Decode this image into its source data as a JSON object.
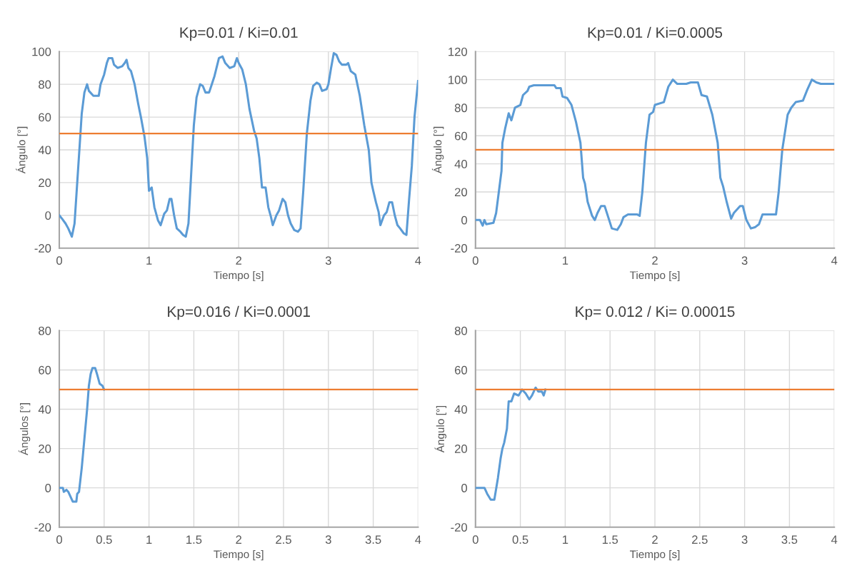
{
  "chart_data": [
    {
      "type": "line",
      "title": "Kp=0.01 / Ki=0.01",
      "xlabel": "Tiempo [s]",
      "ylabel": "Ángulo [°]",
      "xlim": [
        0,
        4
      ],
      "xticks": [
        0,
        1,
        2,
        3,
        4
      ],
      "ylim": [
        -20,
        100
      ],
      "yticks": [
        -20,
        0,
        20,
        40,
        60,
        80,
        100
      ],
      "grid": true,
      "ref_lines": [
        {
          "axis": "y",
          "value": 50,
          "color": "#ed7d31"
        }
      ],
      "series": [
        {
          "color": "#5b9bd5",
          "x": [
            0,
            0.03,
            0.07,
            0.1,
            0.14,
            0.17,
            0.2,
            0.23,
            0.25,
            0.28,
            0.31,
            0.33,
            0.38,
            0.44,
            0.46,
            0.5,
            0.53,
            0.55,
            0.59,
            0.61,
            0.65,
            0.7,
            0.73,
            0.75,
            0.77,
            0.8,
            0.84,
            0.88,
            0.91,
            0.95,
            0.98,
            1.0,
            1.03,
            1.06,
            1.1,
            1.13,
            1.17,
            1.2,
            1.23,
            1.25,
            1.28,
            1.31,
            1.35,
            1.38,
            1.41,
            1.44,
            1.47,
            1.5,
            1.53,
            1.57,
            1.6,
            1.63,
            1.67,
            1.7,
            1.73,
            1.78,
            1.82,
            1.85,
            1.9,
            1.95,
            1.98,
            2.0,
            2.04,
            2.08,
            2.12,
            2.17,
            2.2,
            2.23,
            2.26,
            2.3,
            2.33,
            2.36,
            2.38,
            2.42,
            2.45,
            2.49,
            2.52,
            2.55,
            2.58,
            2.62,
            2.66,
            2.69,
            2.72,
            2.76,
            2.8,
            2.83,
            2.87,
            2.9,
            2.93,
            2.98,
            3.0,
            3.03,
            3.06,
            3.09,
            3.12,
            3.15,
            3.2,
            3.22,
            3.25,
            3.3,
            3.35,
            3.4,
            3.45,
            3.48,
            3.5,
            3.53,
            3.56,
            3.58,
            3.62,
            3.65,
            3.68,
            3.71,
            3.74,
            3.77,
            3.8,
            3.84,
            3.87,
            3.9,
            3.93,
            3.96,
            4.0
          ],
          "values": [
            0,
            -2,
            -5,
            -8,
            -13,
            -5,
            20,
            45,
            62,
            75,
            80,
            76,
            73,
            73,
            80,
            86,
            93,
            96,
            96,
            92,
            90,
            91,
            93,
            95,
            90,
            88,
            80,
            68,
            60,
            48,
            35,
            15,
            17,
            5,
            -3,
            -6,
            1,
            3,
            10,
            10,
            0,
            -8,
            -10,
            -12,
            -13,
            -5,
            25,
            55,
            72,
            80,
            79,
            75,
            75,
            80,
            85,
            96,
            97,
            93,
            90,
            91,
            96,
            93,
            89,
            80,
            65,
            52,
            47,
            35,
            17,
            17,
            5,
            -1,
            -6,
            0,
            3,
            10,
            8,
            0,
            -5,
            -9,
            -10,
            -8,
            15,
            50,
            70,
            79,
            81,
            80,
            76,
            77,
            80,
            90,
            99,
            98,
            94,
            92,
            92,
            93,
            88,
            86,
            73,
            55,
            40,
            20,
            15,
            8,
            2,
            -6,
            0,
            2,
            8,
            8,
            0,
            -6,
            -8,
            -11,
            -12,
            10,
            30,
            60,
            82
          ]
        }
      ]
    },
    {
      "type": "line",
      "title": "Kp=0.01 / Ki=0.0005",
      "xlabel": "Tiempo [s]",
      "ylabel": "Ángulo [°]",
      "xlim": [
        0,
        4
      ],
      "xticks": [
        0,
        1,
        2,
        3,
        4
      ],
      "ylim": [
        -20,
        120
      ],
      "yticks": [
        -20,
        0,
        20,
        40,
        60,
        80,
        100,
        120
      ],
      "grid": true,
      "ref_lines": [
        {
          "axis": "y",
          "value": 50,
          "color": "#ed7d31"
        }
      ],
      "series": [
        {
          "color": "#5b9bd5",
          "x": [
            0,
            0.05,
            0.08,
            0.1,
            0.12,
            0.2,
            0.23,
            0.26,
            0.29,
            0.3,
            0.33,
            0.37,
            0.4,
            0.44,
            0.5,
            0.53,
            0.58,
            0.6,
            0.65,
            0.88,
            0.9,
            0.95,
            0.97,
            1.02,
            1.07,
            1.12,
            1.17,
            1.2,
            1.22,
            1.25,
            1.3,
            1.33,
            1.36,
            1.4,
            1.44,
            1.48,
            1.52,
            1.58,
            1.62,
            1.65,
            1.7,
            1.8,
            1.83,
            1.86,
            1.9,
            1.94,
            1.98,
            2.0,
            2.1,
            2.15,
            2.2,
            2.25,
            2.35,
            2.4,
            2.48,
            2.52,
            2.58,
            2.64,
            2.7,
            2.73,
            2.76,
            2.8,
            2.85,
            2.88,
            2.95,
            2.98,
            3.02,
            3.07,
            3.12,
            3.16,
            3.2,
            3.35,
            3.38,
            3.42,
            3.48,
            3.52,
            3.57,
            3.65,
            3.7,
            3.75,
            3.8,
            3.85,
            4.0
          ],
          "values": [
            0,
            0,
            -4,
            0,
            -3,
            -2,
            5,
            20,
            35,
            55,
            65,
            76,
            71,
            80,
            82,
            89,
            92,
            95,
            96,
            96,
            94,
            94,
            88,
            87,
            82,
            70,
            55,
            30,
            26,
            13,
            3,
            0,
            5,
            10,
            10,
            2,
            -6,
            -7,
            -3,
            2,
            4,
            4,
            3,
            20,
            55,
            75,
            77,
            82,
            84,
            95,
            100,
            97,
            97,
            98,
            98,
            89,
            88,
            75,
            55,
            30,
            24,
            13,
            1,
            5,
            10,
            10,
            0,
            -6,
            -5,
            -3,
            4,
            4,
            20,
            50,
            75,
            80,
            84,
            85,
            93,
            100,
            98,
            97,
            97
          ]
        }
      ]
    },
    {
      "type": "line",
      "title": "Kp=0.016 / Ki=0.0001",
      "xlabel": "Tiempo [s]",
      "ylabel": "Ángulos [°]",
      "xlim": [
        0,
        4
      ],
      "xticks": [
        0,
        {
          "value": 0.5,
          "label": "0.5"
        },
        1,
        {
          "value": 1.5,
          "label": "1.5"
        },
        2,
        {
          "value": 2.5,
          "label": "2.5"
        },
        3,
        {
          "value": 3.5,
          "label": "3.5"
        },
        4
      ],
      "ylim": [
        -20,
        80
      ],
      "yticks": [
        -20,
        0,
        20,
        40,
        60,
        80
      ],
      "grid": true,
      "ref_lines": [
        {
          "axis": "y",
          "value": 50,
          "color": "#ed7d31"
        }
      ],
      "series": [
        {
          "color": "#5b9bd5",
          "x": [
            0,
            0.04,
            0.05,
            0.08,
            0.1,
            0.13,
            0.15,
            0.19,
            0.2,
            0.22,
            0.25,
            0.28,
            0.31,
            0.33,
            0.35,
            0.37,
            0.4,
            0.42,
            0.45,
            0.48,
            0.5
          ],
          "values": [
            0,
            0,
            -2,
            -1,
            -2,
            -5,
            -7,
            -7,
            -3,
            -2,
            10,
            25,
            40,
            52,
            58,
            61,
            61,
            58,
            53,
            52,
            50
          ]
        }
      ]
    },
    {
      "type": "line",
      "title": "Kp= 0.012 / Ki= 0.00015",
      "xlabel": "Tiempo [s]",
      "ylabel": "Ángulo [°]",
      "xlim": [
        0,
        4
      ],
      "xticks": [
        0,
        {
          "value": 0.5,
          "label": "0.5"
        },
        1,
        {
          "value": 1.5,
          "label": "1.5"
        },
        2,
        {
          "value": 2.5,
          "label": "2.5"
        },
        3,
        {
          "value": 3.5,
          "label": "3.5"
        },
        4
      ],
      "ylim": [
        -20,
        80
      ],
      "yticks": [
        -20,
        0,
        20,
        40,
        60,
        80
      ],
      "grid": true,
      "ref_lines": [
        {
          "axis": "y",
          "value": 50,
          "color": "#ed7d31"
        }
      ],
      "series": [
        {
          "color": "#5b9bd5",
          "x": [
            0,
            0.1,
            0.13,
            0.17,
            0.21,
            0.25,
            0.28,
            0.3,
            0.32,
            0.35,
            0.37,
            0.4,
            0.43,
            0.48,
            0.52,
            0.56,
            0.6,
            0.63,
            0.67,
            0.7,
            0.74,
            0.76,
            0.78
          ],
          "values": [
            0,
            0,
            -3,
            -6,
            -6,
            5,
            15,
            20,
            23,
            30,
            44,
            44,
            48,
            47,
            50,
            48,
            45,
            47,
            51,
            49,
            49,
            47,
            50
          ]
        }
      ]
    }
  ]
}
